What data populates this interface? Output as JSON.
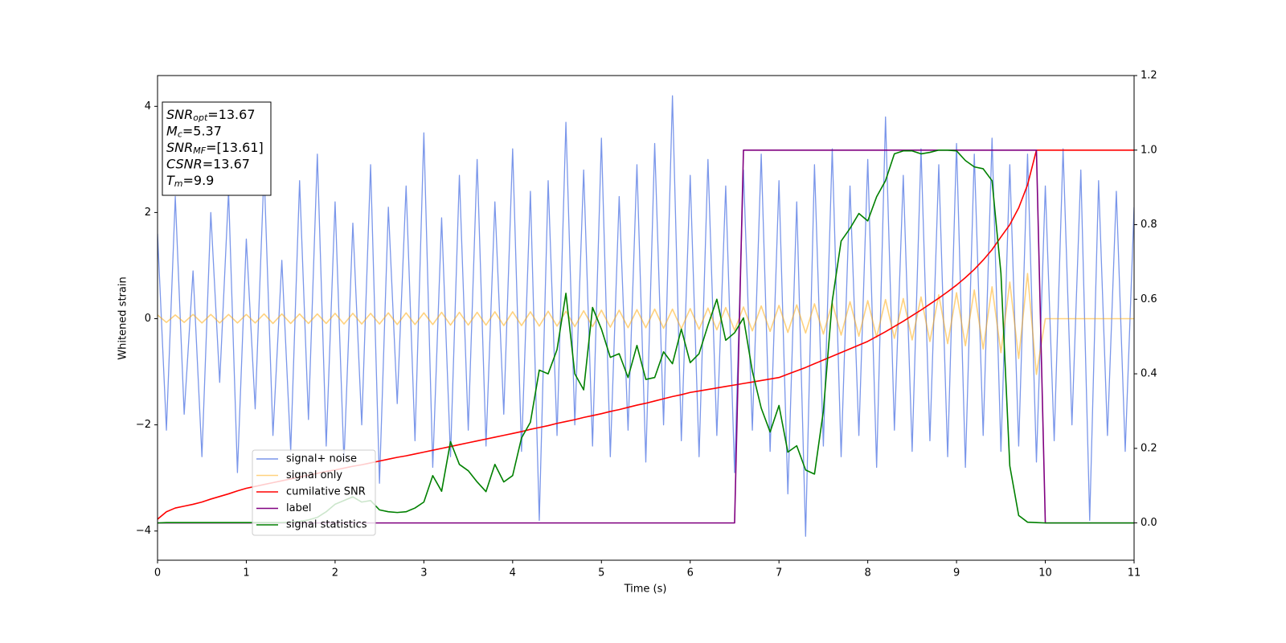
{
  "chart_data": {
    "type": "line",
    "xlabel": "Time (s)",
    "ylabel": "Whitened strain",
    "xlim": [
      0,
      11
    ],
    "xticks": [
      0,
      1,
      2,
      3,
      4,
      5,
      6,
      7,
      8,
      9,
      10,
      11
    ],
    "ylim": [
      -4.55,
      4.58
    ],
    "yticks": [
      {
        "value": -4,
        "label": "−4"
      },
      {
        "value": -2,
        "label": "−2"
      },
      0,
      2,
      4
    ],
    "y2lim": [
      -0.1,
      1.2
    ],
    "y2ticks": [
      {
        "value": 0,
        "label": "0.0"
      },
      0.2,
      0.4,
      0.6,
      0.8,
      {
        "value": 1,
        "label": "1.0"
      },
      1.2
    ],
    "legend": true,
    "annotation": [
      {
        "symbol": "SNR",
        "sub": "opt",
        "text": "=13.67"
      },
      {
        "symbol": "M",
        "sub": "c",
        "text": "=5.37"
      },
      {
        "symbol": "SNR",
        "sub": "MF",
        "text": "=[13.61]"
      },
      {
        "symbol": "CSNR",
        "text": "=13.67"
      },
      {
        "symbol": "T",
        "sub": "m",
        "text": "=9.9"
      }
    ],
    "x": [
      0,
      0.1,
      0.2,
      0.3,
      0.4,
      0.5,
      0.6,
      0.7,
      0.8,
      0.9,
      1,
      1.1,
      1.2,
      1.3,
      1.4,
      1.5,
      1.6,
      1.7,
      1.8,
      1.9,
      2,
      2.1,
      2.2,
      2.3,
      2.4,
      2.5,
      2.6,
      2.7,
      2.8,
      2.9,
      3,
      3.1,
      3.2,
      3.3,
      3.4,
      3.5,
      3.6,
      3.7,
      3.8,
      3.9,
      4,
      4.1,
      4.2,
      4.3,
      4.4,
      4.5,
      4.6,
      4.7,
      4.8,
      4.9,
      5,
      5.1,
      5.2,
      5.3,
      5.4,
      5.5,
      5.6,
      5.7,
      5.8,
      5.9,
      6,
      6.1,
      6.2,
      6.3,
      6.4,
      6.5,
      6.6,
      6.7,
      6.8,
      6.9,
      7,
      7.1,
      7.2,
      7.3,
      7.4,
      7.5,
      7.6,
      7.7,
      7.8,
      7.9,
      8,
      8.1,
      8.2,
      8.3,
      8.4,
      8.5,
      8.6,
      8.7,
      8.8,
      8.9,
      9,
      9.1,
      9.2,
      9.3,
      9.4,
      9.5,
      9.6,
      9.7,
      9.8,
      9.9,
      10,
      10.1,
      10.2,
      10.3,
      10.4,
      10.5,
      10.6,
      10.7,
      10.8,
      10.9,
      11
    ],
    "series": [
      {
        "name": "signal+ noise",
        "color": "#4169e1",
        "alpha": 0.7,
        "axis": "y",
        "values": [
          1.6,
          -2.1,
          2.3,
          -1.8,
          0.9,
          -2.6,
          2.0,
          -1.2,
          2.4,
          -2.9,
          1.5,
          -1.7,
          2.8,
          -2.2,
          1.1,
          -2.5,
          2.6,
          -1.9,
          3.1,
          -2.4,
          2.2,
          -2.7,
          1.8,
          -2.0,
          2.9,
          -3.1,
          2.1,
          -1.6,
          2.5,
          -2.3,
          3.5,
          -2.8,
          1.9,
          -2.6,
          2.7,
          -2.1,
          3.0,
          -2.4,
          2.2,
          -1.8,
          3.2,
          -2.5,
          2.4,
          -3.8,
          2.6,
          -2.2,
          3.7,
          -2.0,
          2.8,
          -2.4,
          3.4,
          -2.6,
          2.3,
          -2.1,
          2.9,
          -2.7,
          3.3,
          -2.0,
          4.2,
          -2.3,
          2.7,
          -2.6,
          3.0,
          -2.2,
          2.5,
          -2.9,
          2.8,
          -2.1,
          3.1,
          -2.5,
          2.6,
          -3.3,
          2.2,
          -4.1,
          2.9,
          -2.4,
          3.2,
          -2.6,
          2.5,
          -2.2,
          3.0,
          -2.8,
          3.8,
          -2.1,
          2.7,
          -2.5,
          3.2,
          -2.3,
          2.9,
          -2.6,
          3.3,
          -2.8,
          3.1,
          -2.2,
          3.4,
          -2.5,
          2.9,
          -2.4,
          3.1,
          -2.7,
          2.5,
          -2.3,
          3.2,
          -2.0,
          2.8,
          -3.8,
          2.6,
          -2.2,
          2.4,
          -2.5,
          2.1
        ]
      },
      {
        "name": "signal only",
        "color": "#ffa500",
        "alpha": 0.5,
        "axis": "y",
        "values": [
          0.07,
          -0.07,
          0.07,
          -0.07,
          0.08,
          -0.08,
          0.08,
          -0.08,
          0.08,
          -0.08,
          0.08,
          -0.08,
          0.09,
          -0.09,
          0.09,
          -0.09,
          0.09,
          -0.09,
          0.09,
          -0.09,
          0.1,
          -0.1,
          0.1,
          -0.1,
          0.1,
          -0.1,
          0.11,
          -0.11,
          0.11,
          -0.11,
          0.11,
          -0.11,
          0.12,
          -0.12,
          0.12,
          -0.12,
          0.12,
          -0.12,
          0.13,
          -0.13,
          0.13,
          -0.13,
          0.13,
          -0.14,
          0.14,
          -0.14,
          0.14,
          -0.15,
          0.15,
          -0.15,
          0.16,
          -0.16,
          0.16,
          -0.17,
          0.17,
          -0.17,
          0.18,
          -0.18,
          0.18,
          -0.19,
          0.19,
          -0.2,
          0.2,
          -0.21,
          0.21,
          -0.22,
          0.22,
          -0.23,
          0.24,
          -0.24,
          0.25,
          -0.26,
          0.26,
          -0.27,
          0.28,
          -0.29,
          0.3,
          -0.31,
          0.32,
          -0.33,
          0.34,
          -0.35,
          0.36,
          -0.37,
          0.38,
          -0.4,
          0.41,
          -0.43,
          0.45,
          -0.47,
          0.49,
          -0.51,
          0.54,
          -0.57,
          0.6,
          -0.64,
          0.69,
          -0.75,
          0.85,
          -1.05,
          0,
          0,
          0,
          0,
          0,
          0,
          0,
          0,
          0,
          0,
          0
        ]
      },
      {
        "name": "cumilative SNR",
        "color": "#ff0000",
        "alpha": 1,
        "axis": "y2",
        "values": [
          0.01,
          0.03,
          0.04,
          0.045,
          0.05,
          0.056,
          0.064,
          0.071,
          0.078,
          0.086,
          0.093,
          0.098,
          0.103,
          0.108,
          0.113,
          0.118,
          0.123,
          0.128,
          0.133,
          0.138,
          0.142,
          0.147,
          0.152,
          0.156,
          0.161,
          0.166,
          0.171,
          0.176,
          0.18,
          0.185,
          0.19,
          0.195,
          0.2,
          0.205,
          0.21,
          0.215,
          0.22,
          0.225,
          0.23,
          0.235,
          0.24,
          0.245,
          0.251,
          0.256,
          0.261,
          0.267,
          0.272,
          0.277,
          0.283,
          0.288,
          0.293,
          0.299,
          0.304,
          0.31,
          0.316,
          0.321,
          0.327,
          0.333,
          0.339,
          0.344,
          0.35,
          0.354,
          0.358,
          0.362,
          0.366,
          0.37,
          0.374,
          0.378,
          0.382,
          0.386,
          0.39,
          0.399,
          0.408,
          0.417,
          0.427,
          0.437,
          0.447,
          0.457,
          0.467,
          0.477,
          0.487,
          0.5,
          0.513,
          0.527,
          0.541,
          0.556,
          0.571,
          0.587,
          0.603,
          0.62,
          0.638,
          0.658,
          0.68,
          0.705,
          0.733,
          0.767,
          0.8,
          0.845,
          0.907,
          1,
          1,
          1,
          1,
          1,
          1,
          1,
          1,
          1,
          1,
          1,
          1
        ]
      },
      {
        "name": "label",
        "color": "#800080",
        "alpha": 1,
        "axis": "y2",
        "values": [
          0,
          0,
          0,
          0,
          0,
          0,
          0,
          0,
          0,
          0,
          0,
          0,
          0,
          0,
          0,
          0,
          0,
          0,
          0,
          0,
          0,
          0,
          0,
          0,
          0,
          0,
          0,
          0,
          0,
          0,
          0,
          0,
          0,
          0,
          0,
          0,
          0,
          0,
          0,
          0,
          0,
          0,
          0,
          0,
          0,
          0,
          0,
          0,
          0,
          0,
          0,
          0,
          0,
          0,
          0,
          0,
          0,
          0,
          0,
          0,
          0,
          0,
          0,
          0,
          0,
          0,
          1,
          1,
          1,
          1,
          1,
          1,
          1,
          1,
          1,
          1,
          1,
          1,
          1,
          1,
          1,
          1,
          1,
          1,
          1,
          1,
          1,
          1,
          1,
          1,
          1,
          1,
          1,
          1,
          1,
          1,
          1,
          1,
          1,
          1,
          0,
          0,
          0,
          0,
          0,
          0,
          0,
          0,
          0,
          0,
          0
        ]
      },
      {
        "name": "signal statistics",
        "color": "#008000",
        "alpha": 1,
        "axis": "y2",
        "values": [
          0,
          0.001,
          0.001,
          0.001,
          0.001,
          0.001,
          0.001,
          0.001,
          0.001,
          0.001,
          0.001,
          0.001,
          0.001,
          0.001,
          0.001,
          0.002,
          0.004,
          0.008,
          0.015,
          0.03,
          0.05,
          0.06,
          0.07,
          0.056,
          0.06,
          0.035,
          0.03,
          0.028,
          0.03,
          0.04,
          0.056,
          0.127,
          0.085,
          0.218,
          0.157,
          0.14,
          0.11,
          0.084,
          0.157,
          0.11,
          0.127,
          0.228,
          0.27,
          0.41,
          0.4,
          0.465,
          0.616,
          0.4,
          0.357,
          0.578,
          0.52,
          0.444,
          0.454,
          0.39,
          0.476,
          0.385,
          0.39,
          0.459,
          0.427,
          0.52,
          0.43,
          0.454,
          0.53,
          0.6,
          0.49,
          0.51,
          0.55,
          0.407,
          0.308,
          0.244,
          0.315,
          0.19,
          0.207,
          0.142,
          0.131,
          0.3,
          0.595,
          0.756,
          0.79,
          0.83,
          0.81,
          0.875,
          0.918,
          0.99,
          0.998,
          0.998,
          0.99,
          0.994,
          1.0,
          1.0,
          0.998,
          0.972,
          0.955,
          0.95,
          0.918,
          0.67,
          0.153,
          0.02,
          0.002,
          0.001,
          0,
          0,
          0,
          0,
          0,
          0,
          0,
          0,
          0,
          0,
          0
        ]
      }
    ]
  }
}
